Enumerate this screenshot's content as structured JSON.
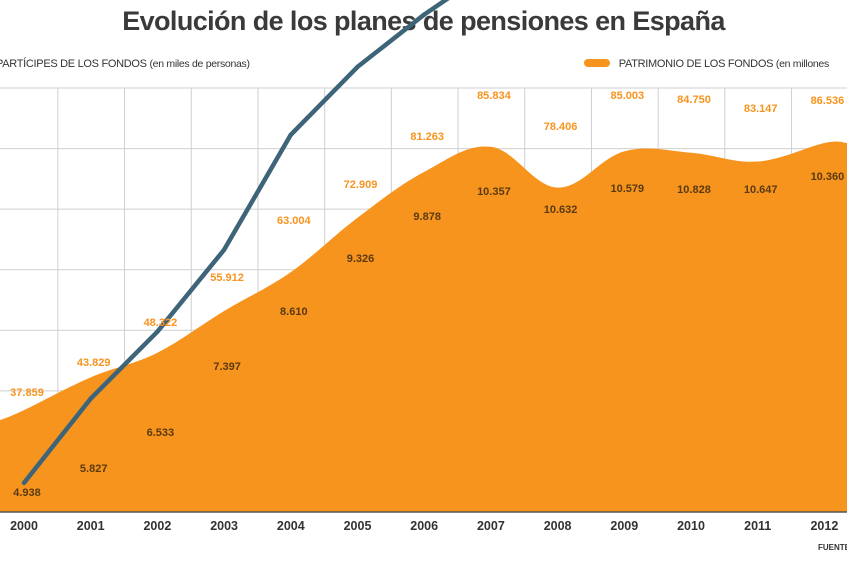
{
  "title": "Evolución de los planes de pensiones en España",
  "legend": {
    "left_label": "PARTÍCIPES DE LOS FONDOS",
    "left_unit": "(en miles de personas)",
    "right_label": "PATRIMONIO DE LOS FONDOS",
    "right_unit": "(en millones"
  },
  "source_label": "FUENTE",
  "colors": {
    "area": "#f7941d",
    "line": "#3d6478",
    "area_label": "#f7941d",
    "line_label": "#5a3a10",
    "grid": "#cfcfcf"
  },
  "chart_data": {
    "type": "area+line",
    "title": "Evolución de los planes de pensiones en España",
    "categories": [
      "2000",
      "2001",
      "2002",
      "2003",
      "2004",
      "2005",
      "2006",
      "2007",
      "2008",
      "2009",
      "2010",
      "2011",
      "2012"
    ],
    "series": [
      {
        "name": "PATRIMONIO DE LOS FONDOS (en millones)",
        "type": "area",
        "values": [
          37859,
          43829,
          48322,
          55912,
          63004,
          72909,
          81263,
          85834,
          78406,
          85003,
          84750,
          83147,
          86536
        ],
        "labels": [
          "37.859",
          "43.829",
          "48.322",
          "55.912",
          "63.004",
          "72.909",
          "81.263",
          "85.834",
          "78.406",
          "85.003",
          "84.750",
          "83.147",
          "86.536"
        ]
      },
      {
        "name": "PARTÍCIPES DE LOS FONDOS (en miles de personas)",
        "type": "line",
        "values": [
          4938,
          5827,
          6533,
          7397,
          8610,
          9326,
          9878,
          10357,
          10632,
          10579,
          10828,
          10647,
          10360
        ],
        "labels": [
          "4.938",
          "5.827",
          "6.533",
          "7.397",
          "8.610",
          "9.326",
          "9.878",
          "10.357",
          "10.632",
          "10.579",
          "10.828",
          "10.647",
          "10.360"
        ]
      }
    ],
    "xlabel": "",
    "ylabel": ""
  }
}
